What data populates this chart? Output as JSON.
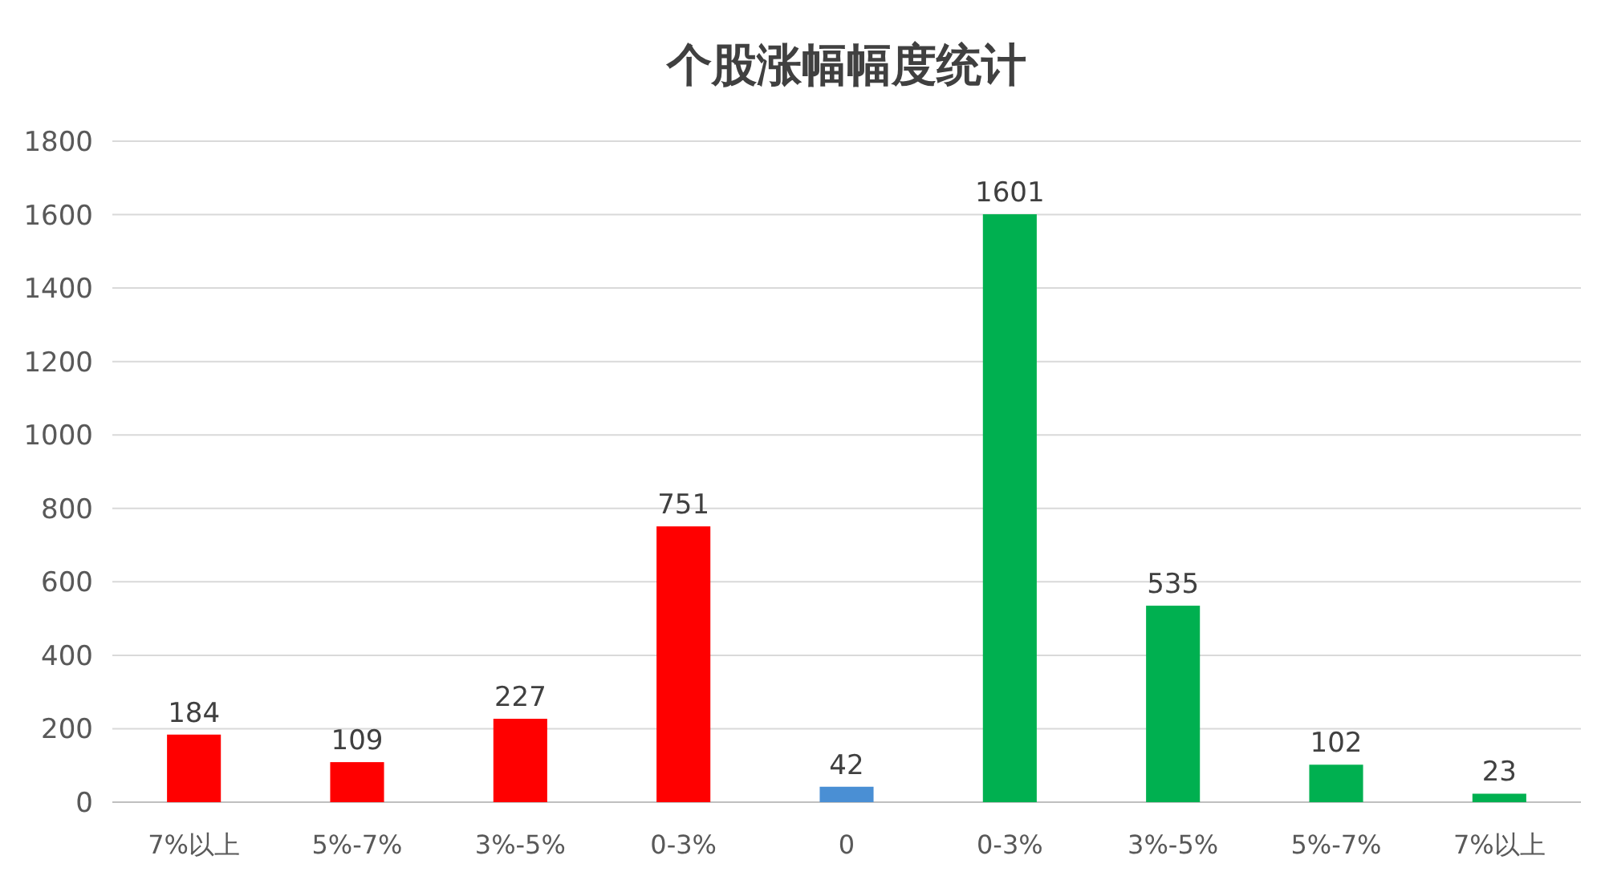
{
  "chart_data": {
    "type": "bar",
    "title": "个股涨幅幅度统计",
    "categories": [
      "7%以上",
      "5%-7%",
      "3%-5%",
      "0-3%",
      "0",
      "0-3%",
      "3%-5%",
      "5%-7%",
      "7%以上"
    ],
    "values": [
      184,
      109,
      227,
      751,
      42,
      1601,
      535,
      102,
      23
    ],
    "colors": [
      "#ff0000",
      "#ff0000",
      "#ff0000",
      "#ff0000",
      "#4a8fd4",
      "#00b050",
      "#00b050",
      "#00b050",
      "#00b050"
    ],
    "ylim": [
      0,
      1800
    ],
    "yticks": [
      0,
      200,
      400,
      600,
      800,
      1000,
      1200,
      1400,
      1600,
      1800
    ],
    "grid": "y",
    "data_labels": true
  }
}
